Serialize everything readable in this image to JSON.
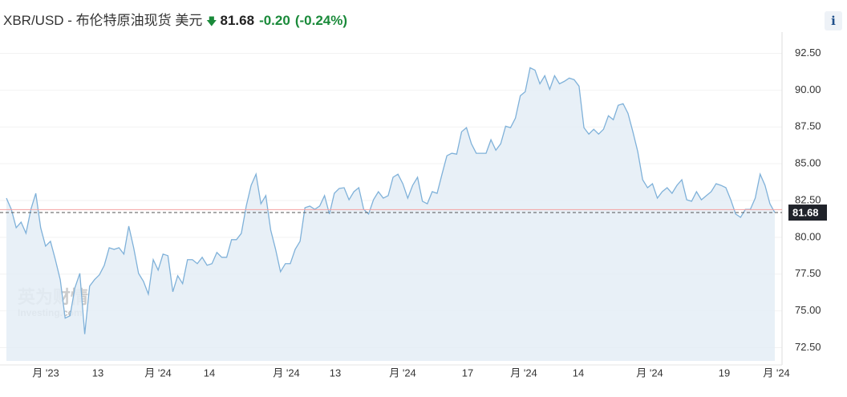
{
  "chart_data": {
    "type": "line",
    "title": "XBR/USD - 布伦特原油现货 美元",
    "last_price_text": "81.68",
    "change_text": "-0.20",
    "change_pct_text": "(-0.24%)",
    "info_button": "i",
    "watermark": "英为财情",
    "watermark_sub": "Investing.com",
    "color": "#7fb1d9",
    "fill": "#e4edf6",
    "last_price": 81.68,
    "reference_line": 81.88,
    "ylim": [
      71.6,
      93.4
    ],
    "yticks": [
      {
        "value": 72.5,
        "label": "72.50"
      },
      {
        "value": 75,
        "label": "75.00"
      },
      {
        "value": 77.5,
        "label": "77.50"
      },
      {
        "value": 80,
        "label": "80.00"
      },
      {
        "value": 82.5,
        "label": "82.50"
      },
      {
        "value": 85,
        "label": "85.00"
      },
      {
        "value": 87.5,
        "label": "87.50"
      },
      {
        "value": 90,
        "label": "90.00"
      },
      {
        "value": 92.5,
        "label": "92.50"
      }
    ],
    "grid": true,
    "x_tick_labels": [
      "月 '23",
      "13",
      "月 '24",
      "14",
      "月 '24",
      "13",
      "月 '24",
      "17",
      "月 '24",
      "14",
      "月 '24",
      "19",
      "月 '24"
    ],
    "values": [
      82.66,
      81.9,
      80.65,
      81.03,
      80.27,
      81.9,
      82.99,
      80.65,
      79.4,
      79.73,
      78.48,
      77.12,
      74.51,
      74.67,
      76.58,
      77.55,
      73.42,
      76.68,
      77.12,
      77.45,
      78.1,
      79.29,
      79.18,
      79.29,
      78.86,
      80.76,
      79.29,
      77.55,
      77.01,
      76.14,
      78.48,
      77.77,
      78.86,
      78.75,
      76.3,
      77.39,
      76.85,
      78.48,
      78.48,
      78.21,
      78.64,
      78.1,
      78.21,
      78.97,
      78.64,
      78.64,
      79.84,
      79.84,
      80.27,
      82.12,
      83.53,
      84.29,
      82.28,
      82.83,
      80.49,
      79.18,
      77.66,
      78.21,
      78.21,
      79.18,
      79.73,
      82.01,
      82.12,
      81.9,
      82.12,
      82.83,
      81.58,
      82.99,
      83.32,
      83.37,
      82.55,
      83.1,
      83.37,
      81.9,
      81.58,
      82.55,
      83.1,
      82.66,
      82.83,
      84.08,
      84.29,
      83.64,
      82.66,
      83.53,
      84.08,
      82.45,
      82.28,
      83.1,
      82.99,
      84.29,
      85.54,
      85.71,
      85.65,
      87.17,
      87.45,
      86.36,
      85.71,
      85.71,
      85.71,
      86.63,
      85.92,
      86.36,
      87.55,
      87.45,
      88.1,
      89.62,
      89.89,
      91.52,
      91.36,
      90.43,
      90.98,
      90.05,
      90.98,
      90.43,
      90.6,
      90.82,
      90.71,
      90.27,
      87.45,
      87.01,
      87.34,
      87.01,
      87.34,
      88.26,
      87.99,
      88.97,
      89.08,
      88.42,
      87.17,
      85.82,
      83.91,
      83.37,
      83.64,
      82.66,
      83.1,
      83.37,
      82.99,
      83.53,
      83.91,
      82.55,
      82.45,
      83.1,
      82.55,
      82.83,
      83.1,
      83.64,
      83.53,
      83.37,
      82.55,
      81.58,
      81.36,
      81.9,
      81.9,
      82.66,
      84.29,
      83.53,
      82.28,
      81.68
    ]
  }
}
